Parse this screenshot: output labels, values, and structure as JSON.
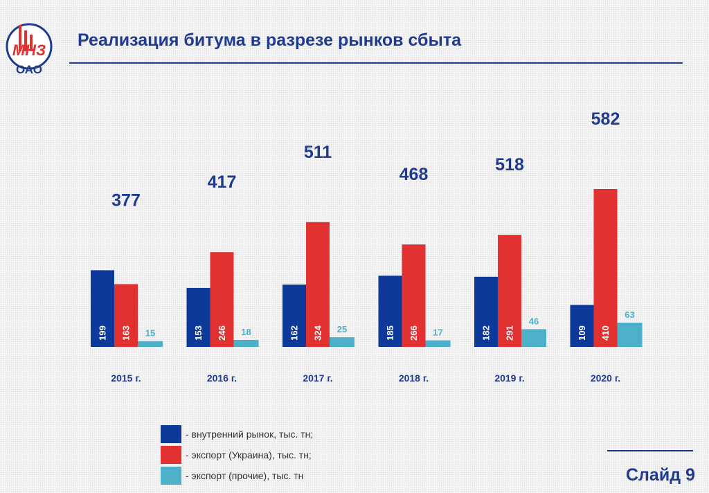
{
  "header": {
    "logo_text": "МНЗ",
    "logo_subtext": "ОАО",
    "title": "Реализация битума в разрезе рынков сбыта"
  },
  "footer": {
    "slide_label": "Слайд 9"
  },
  "colors": {
    "domestic": "#0d3a9a",
    "ukraine": "#e23131",
    "other": "#4bb0c8",
    "title": "#1f3a8f"
  },
  "legend": [
    {
      "label": "- внутренний рынок, тыс. тн;",
      "color": "#0d3a9a"
    },
    {
      "label": "- экспорт (Украина), тыс. тн;",
      "color": "#e23131"
    },
    {
      "label": "- экспорт (прочие), тыс. тн",
      "color": "#4bb0c8"
    }
  ],
  "chart_data": {
    "type": "bar",
    "categories": [
      "2015 г.",
      "2016 г.",
      "2017 г.",
      "2018 г.",
      "2019 г.",
      "2020 г."
    ],
    "series": [
      {
        "name": "- внутренний рынок, тыс. тн;",
        "values": [
          199,
          153,
          162,
          185,
          182,
          109
        ]
      },
      {
        "name": "- экспорт (Украина), тыс. тн;",
        "values": [
          163,
          246,
          324,
          266,
          291,
          410
        ]
      },
      {
        "name": "- экспорт (прочие), тыс. тн",
        "values": [
          15,
          18,
          25,
          17,
          46,
          63
        ]
      }
    ],
    "totals": [
      377,
      417,
      511,
      468,
      518,
      582
    ],
    "ylim": [
      0,
      410
    ],
    "grid": false,
    "legend_position": "bottom"
  }
}
